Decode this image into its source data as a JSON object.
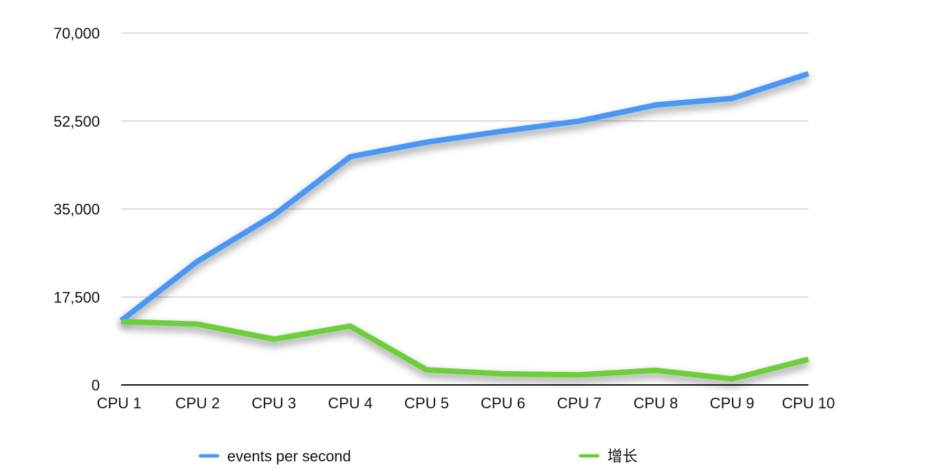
{
  "chart_data": {
    "type": "line",
    "title": "",
    "xlabel": "",
    "ylabel": "",
    "categories": [
      "CPU 1",
      "CPU 2",
      "CPU 3",
      "CPU 4",
      "CPU 5",
      "CPU 6",
      "CPU 7",
      "CPU 8",
      "CPU 9",
      "CPU 10"
    ],
    "ylim": [
      0,
      70000
    ],
    "yticks": [
      0,
      17500,
      35000,
      52500,
      70000
    ],
    "ytick_labels": [
      "0",
      "17,500",
      "35,000",
      "52,500",
      "70,000"
    ],
    "grid": true,
    "legend_position": "bottom",
    "series": [
      {
        "name": "events per second",
        "color": "#4a97f5",
        "values": [
          12800,
          24600,
          33800,
          45400,
          48300,
          50500,
          52500,
          55700,
          57000,
          61900
        ]
      },
      {
        "name": "增长",
        "color": "#6cce37",
        "values": [
          12600,
          12100,
          9100,
          11700,
          3000,
          2200,
          2000,
          2900,
          1200,
          5100
        ]
      }
    ]
  }
}
